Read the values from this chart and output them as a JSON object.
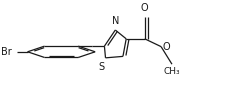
{
  "bg_color": "#ffffff",
  "line_color": "#1a1a1a",
  "lw": 0.9,
  "fs": 7.0,
  "figw": 2.36,
  "figh": 1.02,
  "xlim": [
    0.0,
    1.0
  ],
  "ylim": [
    0.0,
    1.0
  ]
}
